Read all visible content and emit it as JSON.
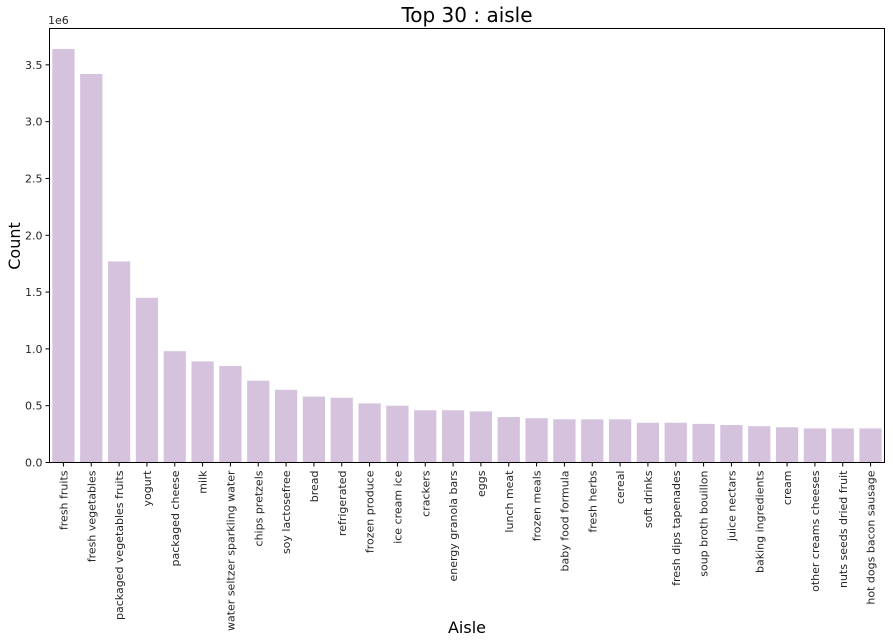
{
  "chart_data": {
    "type": "bar",
    "title": "Top 30 : aisle",
    "xlabel": "Aisle",
    "ylabel": "Count",
    "y_offset_label": "1e6",
    "ylim": [
      0,
      3.82
    ],
    "yticks": [
      0.0,
      0.5,
      1.0,
      1.5,
      2.0,
      2.5,
      3.0,
      3.5
    ],
    "ytick_labels": [
      "0.0",
      "0.5",
      "1.0",
      "1.5",
      "2.0",
      "2.5",
      "3.0",
      "3.5"
    ],
    "grid": false,
    "bar_color": "#d5c3de",
    "categories": [
      "fresh fruits",
      "fresh vegetables",
      "packaged vegetables fruits",
      "yogurt",
      "packaged cheese",
      "milk",
      "water seltzer sparkling water",
      "chips pretzels",
      "soy lactosefree",
      "bread",
      "refrigerated",
      "frozen produce",
      "ice cream ice",
      "crackers",
      "energy granola bars",
      "eggs",
      "lunch meat",
      "frozen meals",
      "baby food formula",
      "fresh herbs",
      "cereal",
      "soft drinks",
      "fresh dips tapenades",
      "soup broth bouillon",
      "juice nectars",
      "baking ingredients",
      "cream",
      "other creams cheeses",
      "nuts seeds dried fruit",
      "hot dogs bacon sausage"
    ],
    "values": [
      3.64,
      3.42,
      1.77,
      1.45,
      0.98,
      0.89,
      0.85,
      0.72,
      0.64,
      0.58,
      0.57,
      0.52,
      0.5,
      0.46,
      0.46,
      0.45,
      0.4,
      0.39,
      0.38,
      0.38,
      0.38,
      0.35,
      0.35,
      0.34,
      0.33,
      0.32,
      0.31,
      0.3,
      0.3,
      0.3
    ]
  }
}
